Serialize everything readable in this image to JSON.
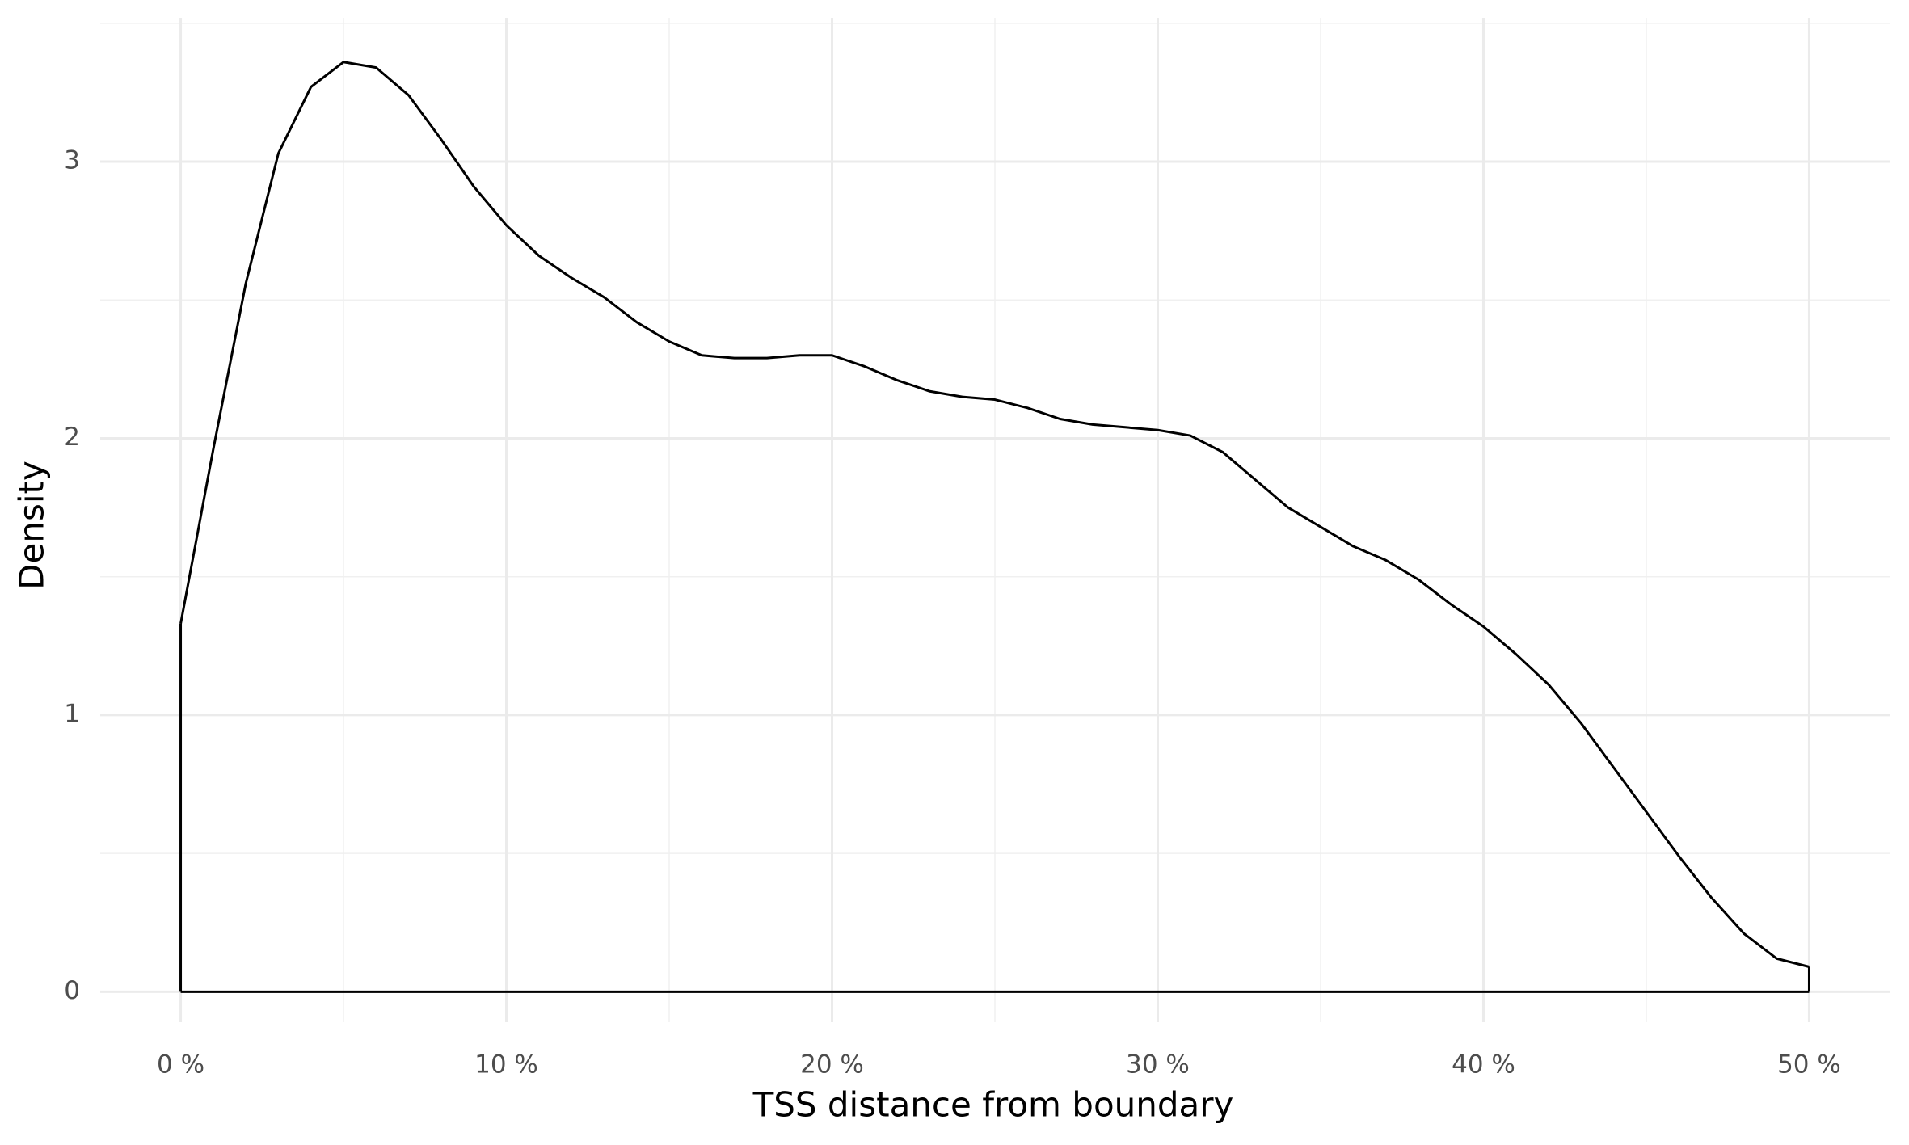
{
  "chart_data": {
    "type": "density",
    "x_label": "TSS distance from boundary",
    "y_label": "Density",
    "x": [
      0,
      1,
      2,
      3,
      4,
      5,
      6,
      7,
      8,
      9,
      10,
      11,
      12,
      13,
      14,
      15,
      16,
      17,
      18,
      19,
      20,
      21,
      22,
      23,
      24,
      25,
      26,
      27,
      28,
      29,
      30,
      31,
      32,
      33,
      34,
      35,
      36,
      37,
      38,
      39,
      40,
      41,
      42,
      43,
      44,
      45,
      46,
      47,
      48,
      49,
      50
    ],
    "values": [
      1.33,
      1.96,
      2.56,
      3.03,
      3.27,
      3.36,
      3.34,
      3.24,
      3.08,
      2.91,
      2.77,
      2.66,
      2.58,
      2.51,
      2.42,
      2.35,
      2.3,
      2.29,
      2.29,
      2.3,
      2.3,
      2.26,
      2.21,
      2.17,
      2.15,
      2.14,
      2.11,
      2.07,
      2.05,
      2.04,
      2.03,
      2.01,
      1.95,
      1.85,
      1.75,
      1.68,
      1.61,
      1.56,
      1.49,
      1.4,
      1.32,
      1.22,
      1.11,
      0.97,
      0.81,
      0.65,
      0.49,
      0.34,
      0.21,
      0.12,
      0.09
    ],
    "color": "#000000",
    "xlim": [
      -2.47,
      52.47
    ],
    "ylim": [
      -0.11,
      3.52
    ],
    "xticks": [
      {
        "value": 0,
        "label": "0 %"
      },
      {
        "value": 10,
        "label": "10 %"
      },
      {
        "value": 20,
        "label": "20 %"
      },
      {
        "value": 30,
        "label": "30 %"
      },
      {
        "value": 40,
        "label": "40 %"
      },
      {
        "value": 50,
        "label": "50 %"
      }
    ],
    "yticks": [
      0,
      1,
      2,
      3
    ],
    "grid": true
  }
}
